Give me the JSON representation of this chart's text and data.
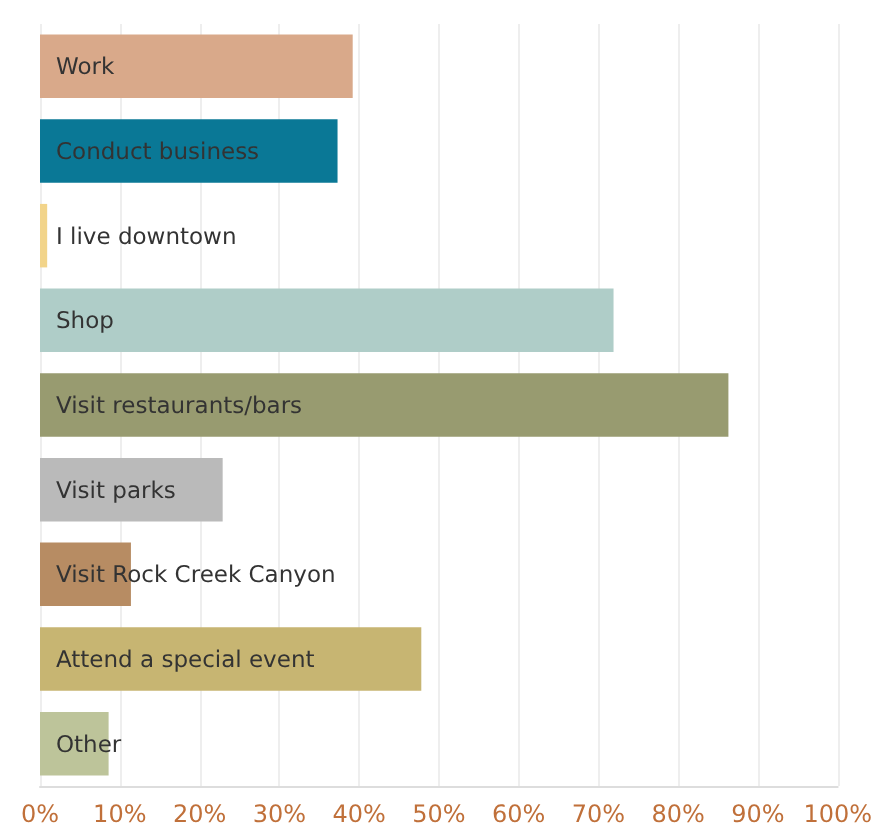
{
  "chart_data": {
    "type": "bar",
    "orientation": "horizontal",
    "categories": [
      "Work",
      "Conduct business",
      "I live downtown",
      "Shop",
      "Visit restaurants/bars",
      "Visit parks",
      "Visit Rock Creek Canyon",
      "Attend a special event",
      "Other"
    ],
    "values": [
      39.2,
      37.3,
      0.9,
      71.9,
      86.3,
      22.9,
      11.4,
      47.8,
      8.6
    ],
    "colors": [
      "#d9a98a",
      "#0a7896",
      "#f2d48a",
      "#afcdc8",
      "#989b70",
      "#bababa",
      "#b78c63",
      "#c7b572",
      "#bdc49a"
    ],
    "xlim": [
      0,
      100
    ],
    "xticks": [
      {
        "value": 0,
        "label": "0%"
      },
      {
        "value": 10,
        "label": "10%"
      },
      {
        "value": 20,
        "label": "20%"
      },
      {
        "value": 30,
        "label": "30%"
      },
      {
        "value": 40,
        "label": "40%"
      },
      {
        "value": 50,
        "label": "50%"
      },
      {
        "value": 60,
        "label": "60%"
      },
      {
        "value": 70,
        "label": "70%"
      },
      {
        "value": 80,
        "label": "80%"
      },
      {
        "value": 90,
        "label": "90%"
      },
      {
        "value": 100,
        "label": "100%"
      }
    ],
    "grid": "x"
  }
}
